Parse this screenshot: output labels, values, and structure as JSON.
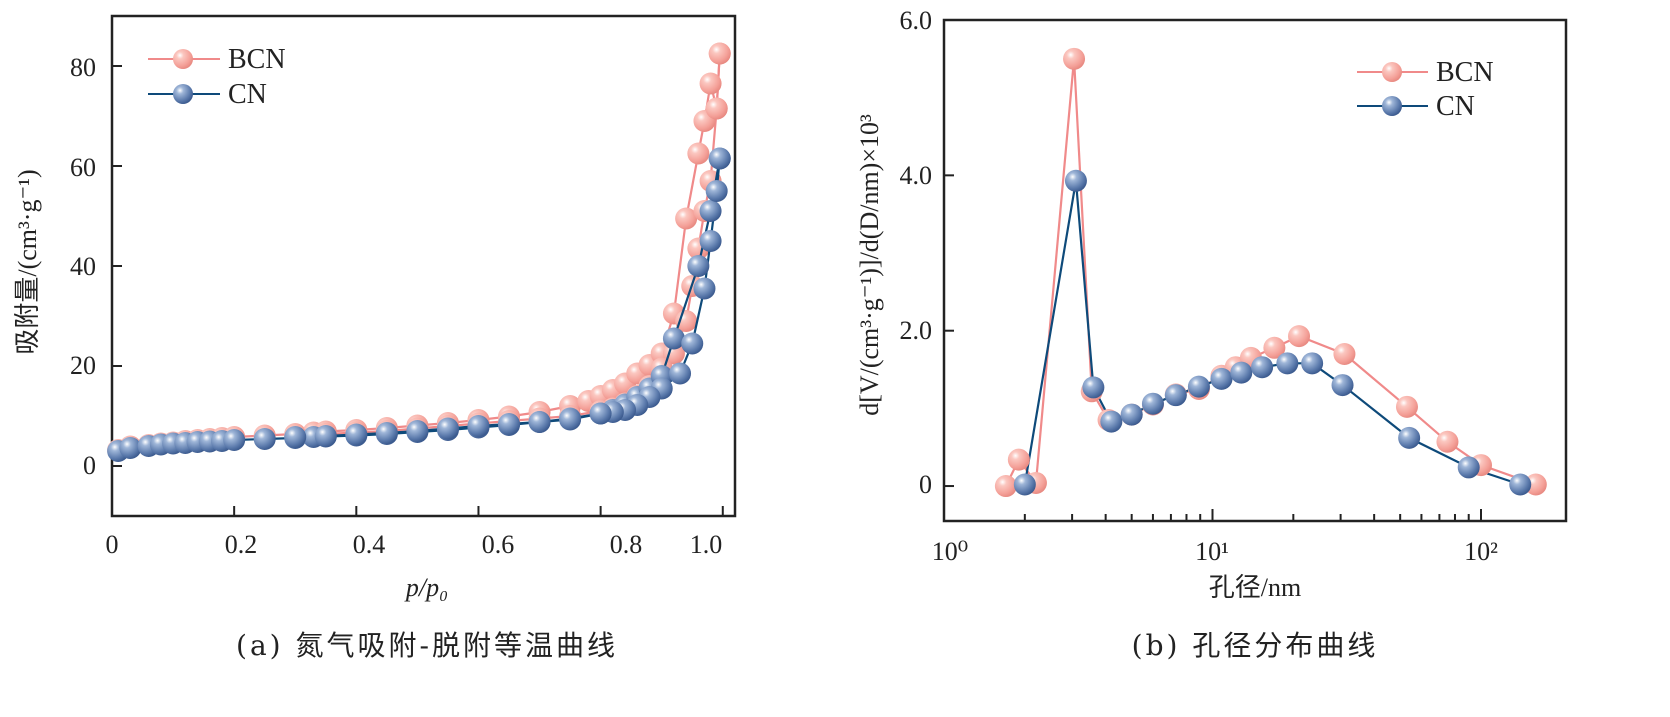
{
  "colors": {
    "bcn": "#f08a8a",
    "bcn_marker": "#f4a49c",
    "cn": "#0e4a7a",
    "cn_marker": "#5b7cae",
    "axis": "#222222"
  },
  "chart_data": [
    {
      "id": "a",
      "type": "line",
      "title": "",
      "caption": "(a) 氮气吸附-脱附等温曲线",
      "xlabel": "p/p₀",
      "ylabel": "吸附量/(cm³·g⁻¹)",
      "xlim": [
        0,
        1.02
      ],
      "ylim": [
        -10,
        90
      ],
      "xticks": [
        0,
        0.2,
        0.4,
        0.6,
        0.8,
        1.0
      ],
      "xtick_labels": [
        "0",
        "0.2",
        "0.4",
        "0.6",
        "0.8",
        "1.0"
      ],
      "yticks": [
        0,
        20,
        40,
        60,
        80
      ],
      "ytick_labels": [
        "0",
        "20",
        "40",
        "60",
        "80"
      ],
      "legend": {
        "position": "top-left",
        "entries": [
          "BCN",
          "CN"
        ]
      },
      "series": [
        {
          "name": "BCN",
          "branch": "adsorption",
          "x": [
            0.01,
            0.03,
            0.06,
            0.08,
            0.1,
            0.12,
            0.14,
            0.16,
            0.18,
            0.2,
            0.25,
            0.3,
            0.33,
            0.35,
            0.4,
            0.45,
            0.5,
            0.55,
            0.6,
            0.65,
            0.7,
            0.75,
            0.78,
            0.8,
            0.82,
            0.84,
            0.86,
            0.88,
            0.9,
            0.92,
            0.94,
            0.96,
            0.97,
            0.98,
            0.99,
            0.995
          ],
          "y": [
            3.2,
            3.9,
            4.2,
            4.5,
            4.7,
            5.0,
            5.2,
            5.4,
            5.6,
            5.8,
            6.1,
            6.4,
            6.7,
            6.9,
            7.2,
            7.6,
            8.1,
            8.6,
            9.2,
            9.9,
            10.8,
            12.0,
            13.0,
            14.0,
            15.2,
            16.5,
            18.5,
            20.2,
            22.5,
            30.5,
            49.5,
            62.5,
            69.0,
            76.5,
            71.5,
            82.5
          ]
        },
        {
          "name": "BCN",
          "branch": "desorption",
          "x": [
            0.995,
            0.99,
            0.98,
            0.97,
            0.96,
            0.95,
            0.94,
            0.92,
            0.9,
            0.88,
            0.86,
            0.84,
            0.82,
            0.8,
            0.75,
            0.7,
            0.65,
            0.6,
            0.55,
            0.5,
            0.45,
            0.4,
            0.35,
            0.3
          ],
          "y": [
            82.5,
            71.5,
            57.0,
            51.0,
            43.5,
            36.0,
            29.0,
            22.5,
            19.5,
            16.0,
            14.0,
            12.5,
            11.5,
            11.0,
            10.0,
            9.5,
            9.0,
            8.5,
            8.0,
            7.5,
            7.0,
            6.7,
            6.4,
            6.2
          ]
        },
        {
          "name": "CN",
          "branch": "adsorption",
          "x": [
            0.01,
            0.03,
            0.06,
            0.08,
            0.1,
            0.12,
            0.14,
            0.16,
            0.18,
            0.2,
            0.25,
            0.3,
            0.33,
            0.35,
            0.4,
            0.45,
            0.5,
            0.55,
            0.6,
            0.65,
            0.7,
            0.75,
            0.8,
            0.82,
            0.84,
            0.86,
            0.88,
            0.9,
            0.92,
            0.96,
            0.98,
            0.995
          ],
          "y": [
            3.0,
            3.6,
            4.0,
            4.3,
            4.5,
            4.6,
            4.8,
            4.9,
            5.0,
            5.2,
            5.4,
            5.6,
            5.8,
            5.9,
            6.1,
            6.4,
            6.8,
            7.2,
            7.7,
            8.2,
            8.8,
            9.5,
            10.5,
            11.2,
            12.3,
            13.8,
            15.5,
            18.0,
            25.5,
            40.0,
            51.0,
            61.5
          ]
        },
        {
          "name": "CN",
          "branch": "desorption",
          "x": [
            0.995,
            0.99,
            0.98,
            0.97,
            0.95,
            0.93,
            0.9,
            0.88,
            0.86,
            0.84,
            0.82,
            0.8,
            0.75,
            0.7,
            0.65,
            0.6,
            0.55,
            0.5,
            0.45,
            0.4,
            0.35,
            0.3
          ],
          "y": [
            61.5,
            55.0,
            45.0,
            35.5,
            24.5,
            18.5,
            15.5,
            13.8,
            12.2,
            11.2,
            10.8,
            10.5,
            9.3,
            8.8,
            8.4,
            8.0,
            7.5,
            7.0,
            6.6,
            6.3,
            6.0,
            5.8
          ]
        }
      ]
    },
    {
      "id": "b",
      "type": "line",
      "title": "",
      "caption": "(b) 孔径分布曲线",
      "xlabel": "孔径/nm",
      "ylabel": "d[V/(cm³·g⁻¹)]/d(D/nm)×10³",
      "xscale": "log",
      "xlim": [
        1,
        180
      ],
      "ylim": [
        -0.45,
        6.0
      ],
      "xticks": [
        1,
        10,
        100
      ],
      "xtick_labels": [
        "10⁰",
        "10¹",
        "10²"
      ],
      "yticks": [
        0,
        2.0,
        4.0,
        6.0
      ],
      "ytick_labels": [
        "0",
        "2.0",
        "4.0",
        "6.0"
      ],
      "legend": {
        "position": "top-right",
        "entries": [
          "BCN",
          "CN"
        ]
      },
      "series": [
        {
          "name": "BCN",
          "x": [
            1.7,
            1.9,
            2.2,
            3.05,
            3.55,
            4.1,
            5.0,
            6.0,
            7.3,
            8.9,
            10.8,
            12.2,
            13.9,
            17.0,
            21.0,
            31.0,
            53.0,
            75.0,
            100.0,
            160.0
          ],
          "y": [
            0.0,
            0.34,
            0.04,
            5.5,
            1.22,
            0.85,
            0.92,
            1.05,
            1.18,
            1.25,
            1.42,
            1.53,
            1.65,
            1.78,
            1.93,
            1.7,
            1.02,
            0.57,
            0.27,
            0.02
          ]
        },
        {
          "name": "CN",
          "x": [
            2.0,
            3.1,
            3.6,
            4.2,
            5.0,
            6.0,
            7.3,
            8.9,
            10.8,
            12.8,
            15.3,
            19.0,
            23.5,
            30.5,
            54.0,
            90.0,
            140.0
          ],
          "y": [
            0.02,
            3.93,
            1.27,
            0.83,
            0.92,
            1.06,
            1.17,
            1.28,
            1.38,
            1.46,
            1.53,
            1.58,
            1.58,
            1.3,
            0.62,
            0.24,
            0.02
          ]
        }
      ]
    }
  ]
}
